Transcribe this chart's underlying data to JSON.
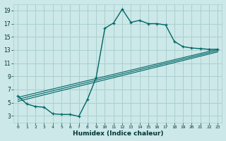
{
  "xlabel": "Humidex (Indice chaleur)",
  "bg_color": "#cce8e8",
  "grid_color": "#aacfcf",
  "line_color": "#006666",
  "xlim": [
    -0.5,
    23.5
  ],
  "ylim": [
    2.0,
    20.0
  ],
  "xticks": [
    0,
    1,
    2,
    3,
    4,
    5,
    6,
    7,
    8,
    9,
    10,
    11,
    12,
    13,
    14,
    15,
    16,
    17,
    18,
    19,
    20,
    21,
    22,
    23
  ],
  "yticks": [
    3,
    5,
    7,
    9,
    11,
    13,
    15,
    17,
    19
  ],
  "curve1_x": [
    0,
    1,
    2,
    3,
    4,
    5,
    6,
    7,
    8,
    9,
    10,
    11,
    12,
    13,
    14,
    15,
    16,
    17,
    18,
    19,
    20,
    21,
    22,
    23
  ],
  "curve1_y": [
    6.0,
    4.8,
    4.4,
    4.3,
    3.3,
    3.2,
    3.2,
    2.9,
    5.5,
    8.8,
    16.3,
    17.1,
    19.2,
    17.2,
    17.5,
    17.0,
    17.0,
    16.8,
    14.3,
    13.5,
    13.3,
    13.2,
    13.1,
    13.1
  ],
  "curve2_x": [
    0,
    23
  ],
  "curve2_y": [
    5.8,
    13.1
  ],
  "curve3_x": [
    0,
    23
  ],
  "curve3_y": [
    5.5,
    12.9
  ],
  "curve4_x": [
    0,
    23
  ],
  "curve4_y": [
    5.2,
    12.7
  ]
}
